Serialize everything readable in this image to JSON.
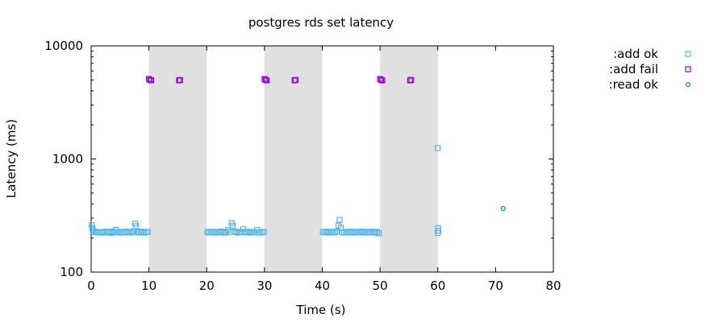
{
  "chart_data": {
    "type": "scatter",
    "title": "postgres rds set latency",
    "xlabel": "Time (s)",
    "ylabel": "Latency (ms)",
    "xlim": [
      0,
      80
    ],
    "ylim": [
      100,
      10000
    ],
    "yscale": "log",
    "grid": false,
    "legend_position": "top-right-outside",
    "x_ticks": [
      0,
      10,
      20,
      30,
      40,
      50,
      60,
      70,
      80
    ],
    "y_ticks": [
      100,
      1000,
      10000
    ],
    "shaded_intervals": [
      [
        10,
        20
      ],
      [
        30,
        40
      ],
      [
        50,
        60
      ]
    ],
    "series": [
      {
        "name": ":add ok",
        "marker": "square",
        "color": "#56b4e9",
        "points": [
          [
            0.1,
            260
          ],
          [
            0.2,
            245
          ],
          [
            0.3,
            235
          ],
          [
            0.5,
            228
          ],
          [
            0.8,
            225
          ],
          [
            1.0,
            227
          ],
          [
            1.3,
            224
          ],
          [
            1.6,
            226
          ],
          [
            1.9,
            223
          ],
          [
            2.2,
            225
          ],
          [
            2.5,
            228
          ],
          [
            2.8,
            224
          ],
          [
            3.1,
            226
          ],
          [
            3.4,
            222
          ],
          [
            3.7,
            229
          ],
          [
            4.0,
            225
          ],
          [
            4.3,
            236
          ],
          [
            4.6,
            224
          ],
          [
            4.9,
            227
          ],
          [
            5.2,
            223
          ],
          [
            5.5,
            226
          ],
          [
            5.8,
            225
          ],
          [
            6.1,
            228
          ],
          [
            6.4,
            224
          ],
          [
            6.7,
            226
          ],
          [
            7.0,
            223
          ],
          [
            7.3,
            230
          ],
          [
            7.6,
            268
          ],
          [
            7.8,
            255
          ],
          [
            8.0,
            226
          ],
          [
            8.3,
            224
          ],
          [
            8.6,
            228
          ],
          [
            8.9,
            225
          ],
          [
            9.2,
            223
          ],
          [
            9.5,
            227
          ],
          [
            9.8,
            226
          ],
          [
            20.1,
            226
          ],
          [
            20.4,
            224
          ],
          [
            20.7,
            228
          ],
          [
            21.0,
            225
          ],
          [
            21.3,
            223
          ],
          [
            21.6,
            227
          ],
          [
            21.9,
            226
          ],
          [
            22.2,
            224
          ],
          [
            22.5,
            229
          ],
          [
            22.8,
            225
          ],
          [
            23.1,
            223
          ],
          [
            23.4,
            227
          ],
          [
            23.7,
            235
          ],
          [
            24.0,
            226
          ],
          [
            24.3,
            272
          ],
          [
            24.5,
            258
          ],
          [
            24.8,
            228
          ],
          [
            25.1,
            225
          ],
          [
            25.4,
            223
          ],
          [
            25.7,
            227
          ],
          [
            26.0,
            226
          ],
          [
            26.3,
            240
          ],
          [
            26.6,
            224
          ],
          [
            26.9,
            228
          ],
          [
            27.2,
            225
          ],
          [
            27.5,
            223
          ],
          [
            27.8,
            227
          ],
          [
            28.1,
            226
          ],
          [
            28.4,
            224
          ],
          [
            28.7,
            236
          ],
          [
            29.0,
            225
          ],
          [
            29.3,
            223
          ],
          [
            29.6,
            227
          ],
          [
            29.9,
            226
          ],
          [
            40.1,
            226
          ],
          [
            40.4,
            224
          ],
          [
            40.7,
            228
          ],
          [
            41.0,
            225
          ],
          [
            41.3,
            223
          ],
          [
            41.6,
            227
          ],
          [
            41.9,
            226
          ],
          [
            42.2,
            224
          ],
          [
            42.5,
            229
          ],
          [
            42.8,
            258
          ],
          [
            43.0,
            290
          ],
          [
            43.2,
            248
          ],
          [
            43.5,
            225
          ],
          [
            43.8,
            223
          ],
          [
            44.1,
            227
          ],
          [
            44.4,
            226
          ],
          [
            44.7,
            224
          ],
          [
            45.0,
            228
          ],
          [
            45.3,
            225
          ],
          [
            45.6,
            223
          ],
          [
            45.9,
            227
          ],
          [
            46.2,
            226
          ],
          [
            46.5,
            224
          ],
          [
            46.8,
            228
          ],
          [
            47.1,
            225
          ],
          [
            47.4,
            223
          ],
          [
            47.7,
            227
          ],
          [
            48.0,
            226
          ],
          [
            48.3,
            224
          ],
          [
            48.6,
            228
          ],
          [
            48.9,
            225
          ],
          [
            49.2,
            223
          ],
          [
            49.5,
            227
          ],
          [
            49.8,
            220
          ],
          [
            60.0,
            1250
          ],
          [
            60.05,
            245
          ],
          [
            60.1,
            232
          ],
          [
            60.0,
            222
          ]
        ]
      },
      {
        "name": ":add fail",
        "marker": "square",
        "color": "#9400d3",
        "points": [
          [
            10.0,
            5100
          ],
          [
            10.2,
            5000
          ],
          [
            10.4,
            4950
          ],
          [
            15.2,
            4950
          ],
          [
            15.4,
            5000
          ],
          [
            30.0,
            5100
          ],
          [
            30.2,
            5000
          ],
          [
            30.4,
            4950
          ],
          [
            35.2,
            4950
          ],
          [
            35.4,
            5000
          ],
          [
            50.0,
            5100
          ],
          [
            50.2,
            5000
          ],
          [
            50.4,
            4950
          ],
          [
            55.2,
            4950
          ],
          [
            55.4,
            5000
          ]
        ]
      },
      {
        "name": ":read ok",
        "marker": "circle",
        "color": "#009e73",
        "points": [
          [
            71.3,
            365
          ]
        ]
      }
    ]
  }
}
